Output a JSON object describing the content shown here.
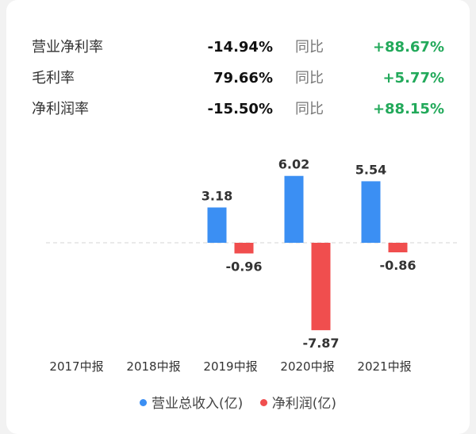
{
  "metrics": [
    {
      "label": "营业净利率",
      "value": "-14.94%",
      "yoy_label": "同比",
      "yoy_value": "+88.67%"
    },
    {
      "label": "毛利率",
      "value": "79.66%",
      "yoy_label": "同比",
      "yoy_value": "+5.77%"
    },
    {
      "label": "净利润率",
      "value": "-15.50%",
      "yoy_label": "同比",
      "yoy_value": "+88.15%"
    }
  ],
  "colors": {
    "revenue": "#3b8ff3",
    "net_profit": "#f04e4e",
    "positive": "#22a95a"
  },
  "chart_data": {
    "type": "bar",
    "categories": [
      "2017中报",
      "2018中报",
      "2019中报",
      "2020中报",
      "2021中报"
    ],
    "series": [
      {
        "name": "营业总收入(亿)",
        "values": [
          null,
          null,
          3.18,
          6.02,
          5.54
        ],
        "labels": [
          "",
          "",
          "3.18",
          "6.02",
          "5.54"
        ]
      },
      {
        "name": "净利润(亿)",
        "values": [
          null,
          null,
          -0.96,
          -7.87,
          -0.86
        ],
        "labels": [
          "",
          "",
          "-0.96",
          "-7.87",
          "-0.86"
        ]
      }
    ],
    "ylim": [
      -8.5,
      7
    ],
    "zero_line": "dashed",
    "legend_position": "bottom"
  }
}
